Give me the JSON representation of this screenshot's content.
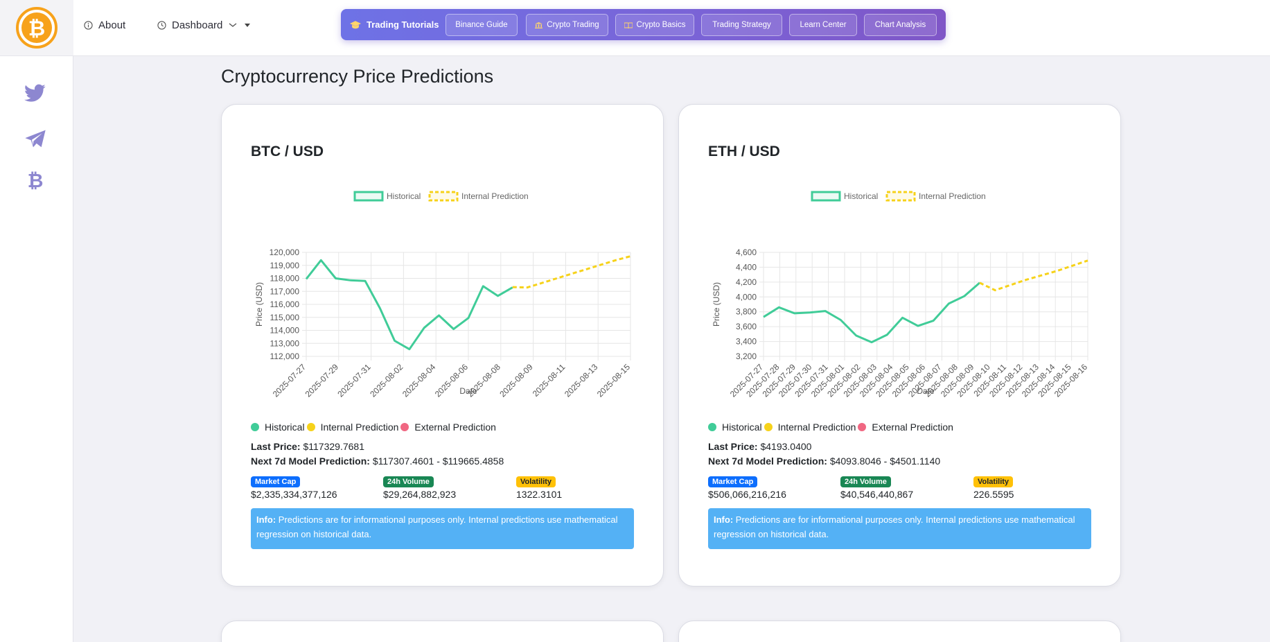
{
  "nav": {
    "about": "About",
    "dashboard": "Dashboard"
  },
  "tutorials": {
    "title": "Trading Tutorials",
    "links": [
      "Binance Guide",
      "Crypto Trading",
      "Crypto Basics",
      "Trading Strategy",
      "Learn Center",
      "Chart Analysis"
    ]
  },
  "page": {
    "title": "Cryptocurrency Price Predictions"
  },
  "colors": {
    "historical": "#40cc98",
    "prediction": "#f6d21a",
    "external": "#f06782",
    "accent": "#6e72e6"
  },
  "cards": [
    {
      "title": "BTC / USD",
      "legend": {
        "historical": "Historical",
        "internal": "Internal Prediction",
        "external": "External Prediction"
      },
      "last_price_label": "Last Price:",
      "last_price": "$117329.7681",
      "prediction_label": "Next 7d Model Prediction:",
      "prediction_range": "$117307.4601 - $119665.4858",
      "stats": [
        {
          "label": "Market Cap",
          "value": "$2,335,334,377,126",
          "color": "#0d6efd"
        },
        {
          "label": "24h Volume",
          "value": "$29,264,882,923",
          "color": "#198754"
        },
        {
          "label": "Volatility",
          "value": "1322.3101",
          "color": "#ffc107"
        }
      ],
      "alert_label": "Info:",
      "alert_text": "Predictions are for informational purposes only. Internal predictions use mathematical regression on historical data."
    },
    {
      "title": "ETH / USD",
      "legend": {
        "historical": "Historical",
        "internal": "Internal Prediction",
        "external": "External Prediction"
      },
      "last_price_label": "Last Price:",
      "last_price": "$4193.0400",
      "prediction_label": "Next 7d Model Prediction:",
      "prediction_range": "$4093.8046 - $4501.1140",
      "stats": [
        {
          "label": "Market Cap",
          "value": "$506,066,216,216",
          "color": "#0d6efd"
        },
        {
          "label": "24h Volume",
          "value": "$40,546,440,867",
          "color": "#198754"
        },
        {
          "label": "Volatility",
          "value": "226.5595",
          "color": "#ffc107"
        }
      ],
      "alert_label": "Info:",
      "alert_text": "Predictions are for informational purposes only. Internal predictions use mathematical regression on historical data."
    }
  ],
  "chart_data": [
    {
      "type": "line",
      "xlabel": "Date",
      "ylabel": "Price (USD)",
      "ylim": [
        112000,
        120000
      ],
      "yticks": [
        120000,
        119000,
        118000,
        117000,
        116000,
        115000,
        114000,
        113000,
        112000
      ],
      "ytick_labels": [
        "120,000",
        "119,000",
        "118,000",
        "117,000",
        "116,000",
        "115,000",
        "114,000",
        "113,000",
        "112,000"
      ],
      "xtick_labels": [
        "2025-07-27",
        "2025-07-29",
        "2025-07-31",
        "2025-08-02",
        "2025-08-04",
        "2025-08-06",
        "2025-08-08",
        "2025-08-09",
        "2025-08-11",
        "2025-08-13",
        "2025-08-15"
      ],
      "legend": [
        "Historical",
        "Internal Prediction"
      ],
      "series": [
        {
          "name": "Historical",
          "values": [
            117950,
            119400,
            118000,
            117850,
            117800,
            115700,
            113200,
            112550,
            114200,
            115150,
            114100,
            114950,
            117400,
            116650,
            117300
          ]
        },
        {
          "name": "Internal Prediction",
          "values": [
            117330,
            117300,
            117650,
            118000,
            118350,
            118700,
            119050,
            119400,
            119700
          ]
        }
      ]
    },
    {
      "type": "line",
      "xlabel": "Date",
      "ylabel": "Price (USD)",
      "ylim": [
        3200,
        4600
      ],
      "yticks": [
        4600,
        4400,
        4200,
        4000,
        3800,
        3600,
        3400,
        3200
      ],
      "ytick_labels": [
        "4,600",
        "4,400",
        "4,200",
        "4,000",
        "3,800",
        "3,600",
        "3,400",
        "3,200"
      ],
      "xtick_labels": [
        "2025-07-27",
        "2025-07-28",
        "2025-07-29",
        "2025-07-30",
        "2025-07-31",
        "2025-08-01",
        "2025-08-02",
        "2025-08-03",
        "2025-08-04",
        "2025-08-05",
        "2025-08-06",
        "2025-08-07",
        "2025-08-08",
        "2025-08-09",
        "2025-08-10",
        "2025-08-11",
        "2025-08-12",
        "2025-08-13",
        "2025-08-14",
        "2025-08-15",
        "2025-08-16"
      ],
      "legend": [
        "Historical",
        "Internal Prediction"
      ],
      "series": [
        {
          "name": "Historical",
          "values": [
            3730,
            3860,
            3780,
            3790,
            3810,
            3690,
            3480,
            3390,
            3490,
            3720,
            3610,
            3680,
            3910,
            4010,
            4190
          ]
        },
        {
          "name": "Internal Prediction",
          "values": [
            4190,
            4090,
            4160,
            4230,
            4290,
            4350,
            4420,
            4490
          ]
        }
      ]
    }
  ]
}
